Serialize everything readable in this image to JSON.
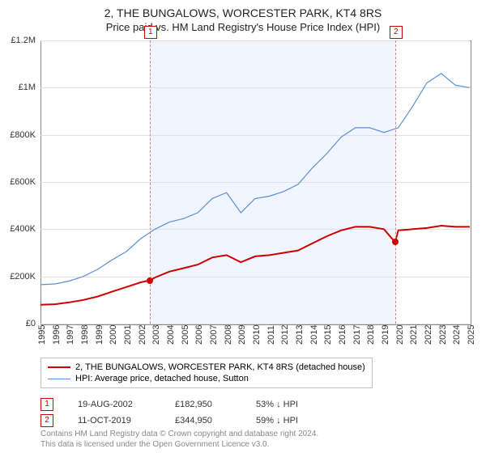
{
  "title": "2, THE BUNGALOWS, WORCESTER PARK, KT4 8RS",
  "subtitle": "Price paid vs. HM Land Registry's House Price Index (HPI)",
  "chart": {
    "type": "line",
    "x_start": 1995,
    "x_end": 2025,
    "ylim": [
      0,
      1200000
    ],
    "ytick_step": 200000,
    "y_labels": [
      "£0",
      "£200K",
      "£400K",
      "£600K",
      "£800K",
      "£1M",
      "£1.2M"
    ],
    "x_ticks": [
      1995,
      1996,
      1997,
      1998,
      1999,
      2000,
      2001,
      2002,
      2003,
      2004,
      2005,
      2006,
      2007,
      2008,
      2009,
      2010,
      2011,
      2012,
      2013,
      2014,
      2015,
      2016,
      2017,
      2018,
      2019,
      2020,
      2021,
      2022,
      2023,
      2024,
      2025
    ],
    "background_color": "#ffffff",
    "grid_color": "#e0e0e0",
    "border_color": "#888888",
    "shade_color": "rgba(200,215,255,0.25)",
    "shade_from": 2002.63,
    "shade_to": 2019.78,
    "series": [
      {
        "name": "price",
        "label": "2, THE BUNGALOWS, WORCESTER PARK, KT4 8RS (detached house)",
        "color": "#cc0000",
        "width": 2,
        "points": [
          [
            1995,
            80000
          ],
          [
            1996,
            82000
          ],
          [
            1997,
            90000
          ],
          [
            1998,
            100000
          ],
          [
            1999,
            115000
          ],
          [
            2000,
            135000
          ],
          [
            2001,
            155000
          ],
          [
            2002,
            175000
          ],
          [
            2002.63,
            182950
          ],
          [
            2003,
            195000
          ],
          [
            2004,
            220000
          ],
          [
            2005,
            235000
          ],
          [
            2006,
            250000
          ],
          [
            2007,
            280000
          ],
          [
            2008,
            290000
          ],
          [
            2009,
            260000
          ],
          [
            2010,
            285000
          ],
          [
            2011,
            290000
          ],
          [
            2012,
            300000
          ],
          [
            2013,
            310000
          ],
          [
            2014,
            340000
          ],
          [
            2015,
            370000
          ],
          [
            2016,
            395000
          ],
          [
            2017,
            410000
          ],
          [
            2018,
            410000
          ],
          [
            2019,
            400000
          ],
          [
            2019.78,
            344950
          ],
          [
            2020,
            395000
          ],
          [
            2021,
            400000
          ],
          [
            2022,
            405000
          ],
          [
            2023,
            415000
          ],
          [
            2024,
            410000
          ],
          [
            2025,
            410000
          ]
        ]
      },
      {
        "name": "hpi",
        "label": "HPI: Average price, detached house, Sutton",
        "color": "#5b8fd6",
        "width": 1.2,
        "points": [
          [
            1995,
            165000
          ],
          [
            1996,
            168000
          ],
          [
            1997,
            180000
          ],
          [
            1998,
            200000
          ],
          [
            1999,
            230000
          ],
          [
            2000,
            270000
          ],
          [
            2001,
            305000
          ],
          [
            2002,
            360000
          ],
          [
            2003,
            400000
          ],
          [
            2004,
            430000
          ],
          [
            2005,
            445000
          ],
          [
            2006,
            470000
          ],
          [
            2007,
            530000
          ],
          [
            2008,
            555000
          ],
          [
            2009,
            470000
          ],
          [
            2010,
            530000
          ],
          [
            2011,
            540000
          ],
          [
            2012,
            560000
          ],
          [
            2013,
            590000
          ],
          [
            2014,
            660000
          ],
          [
            2015,
            720000
          ],
          [
            2016,
            790000
          ],
          [
            2017,
            830000
          ],
          [
            2018,
            830000
          ],
          [
            2019,
            810000
          ],
          [
            2020,
            830000
          ],
          [
            2021,
            920000
          ],
          [
            2022,
            1020000
          ],
          [
            2023,
            1060000
          ],
          [
            2024,
            1010000
          ],
          [
            2025,
            1000000
          ]
        ]
      }
    ],
    "markers": [
      {
        "n": "1",
        "x": 2002.63,
        "y": 182950,
        "color": "#cc0000"
      },
      {
        "n": "2",
        "x": 2019.78,
        "y": 344950,
        "color": "#cc0000"
      }
    ]
  },
  "legend": {
    "items": [
      {
        "color": "#cc0000",
        "width": 2,
        "label": "2, THE BUNGALOWS, WORCESTER PARK, KT4 8RS (detached house)"
      },
      {
        "color": "#5b8fd6",
        "width": 1,
        "label": "HPI: Average price, detached house, Sutton"
      }
    ]
  },
  "table": {
    "rows": [
      {
        "n": "1",
        "date": "19-AUG-2002",
        "price": "£182,950",
        "hpi": "53% ↓ HPI"
      },
      {
        "n": "2",
        "date": "11-OCT-2019",
        "price": "£344,950",
        "hpi": "59% ↓ HPI"
      }
    ]
  },
  "footer": {
    "line1": "Contains HM Land Registry data © Crown copyright and database right 2024.",
    "line2": "This data is licensed under the Open Government Licence v3.0."
  }
}
